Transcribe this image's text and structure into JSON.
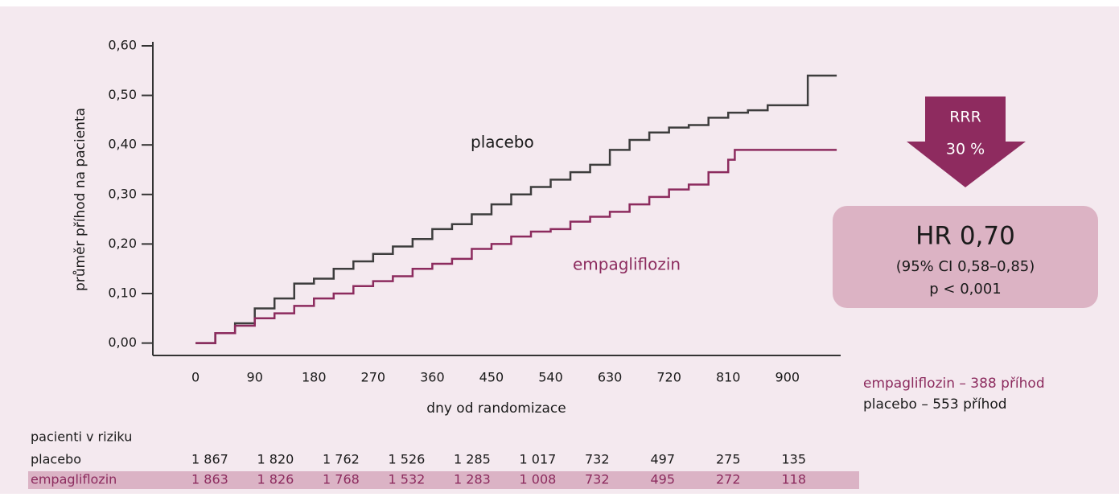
{
  "chart_data": {
    "type": "step-line",
    "y_label": "průměr příhod na pacienta",
    "x_label": "dny od randomizace",
    "xlim": [
      -65,
      981
    ],
    "ylim": [
      -0.025,
      0.6
    ],
    "xticks": [
      0,
      90,
      180,
      270,
      360,
      450,
      540,
      630,
      720,
      810,
      900
    ],
    "yticks": [
      {
        "value": 0,
        "label": "0,00"
      },
      {
        "value": 0.1,
        "label": "0,10"
      },
      {
        "value": 0.2,
        "label": "0,20"
      },
      {
        "value": 0.3,
        "label": "0,30"
      },
      {
        "value": 0.4,
        "label": "0,40"
      },
      {
        "value": 0.5,
        "label": "0,50"
      },
      {
        "value": 0.6,
        "label": "0,60"
      }
    ],
    "series": [
      {
        "name": "placebo",
        "color": "#3d3d3d",
        "x": [
          0,
          30,
          60,
          90,
          120,
          150,
          180,
          210,
          240,
          270,
          300,
          330,
          360,
          390,
          420,
          450,
          480,
          510,
          540,
          570,
          600,
          630,
          660,
          690,
          720,
          750,
          780,
          810,
          840,
          870,
          931,
          975
        ],
        "values": [
          0,
          0.02,
          0.04,
          0.07,
          0.09,
          0.12,
          0.13,
          0.15,
          0.165,
          0.18,
          0.195,
          0.21,
          0.23,
          0.24,
          0.26,
          0.28,
          0.3,
          0.315,
          0.33,
          0.345,
          0.36,
          0.39,
          0.41,
          0.425,
          0.435,
          0.44,
          0.455,
          0.465,
          0.47,
          0.48,
          0.54,
          0.54
        ]
      },
      {
        "name": "empagliflozin",
        "color": "#8c2b5e",
        "x": [
          0,
          30,
          60,
          90,
          120,
          150,
          180,
          210,
          240,
          270,
          300,
          330,
          360,
          390,
          420,
          450,
          480,
          510,
          540,
          570,
          600,
          630,
          660,
          690,
          720,
          750,
          780,
          810,
          820,
          975
        ],
        "values": [
          0,
          0.02,
          0.035,
          0.05,
          0.06,
          0.075,
          0.09,
          0.1,
          0.115,
          0.125,
          0.135,
          0.15,
          0.16,
          0.17,
          0.19,
          0.2,
          0.215,
          0.225,
          0.23,
          0.245,
          0.255,
          0.265,
          0.28,
          0.295,
          0.31,
          0.32,
          0.345,
          0.37,
          0.39,
          0.39
        ]
      }
    ],
    "rrr": {
      "label": "RRR",
      "value": "30 %"
    },
    "hr_box": {
      "hr": "HR 0,70",
      "ci": "(95% CI 0,58–0,85)",
      "p": "p < 0,001"
    },
    "events": [
      "empagliflozin – 388 příhod",
      "placebo – 553 příhod"
    ],
    "at_risk": {
      "title": "pacienti v riziku",
      "rows": [
        {
          "name": "placebo",
          "values": [
            1867,
            1820,
            1762,
            1526,
            1285,
            1017,
            732,
            497,
            275,
            135
          ],
          "value_labels": [
            "1 867",
            "1 820",
            "1 762",
            "1 526",
            "1 285",
            "1 017",
            "732",
            "497",
            "275",
            "135"
          ]
        },
        {
          "name": "empagliflozin",
          "values": [
            1863,
            1826,
            1768,
            1532,
            1283,
            1008,
            732,
            495,
            272,
            118
          ],
          "value_labels": [
            "1 863",
            "1 826",
            "1 768",
            "1 532",
            "1 283",
            "1 008",
            "732",
            "495",
            "272",
            "118"
          ]
        }
      ]
    }
  }
}
